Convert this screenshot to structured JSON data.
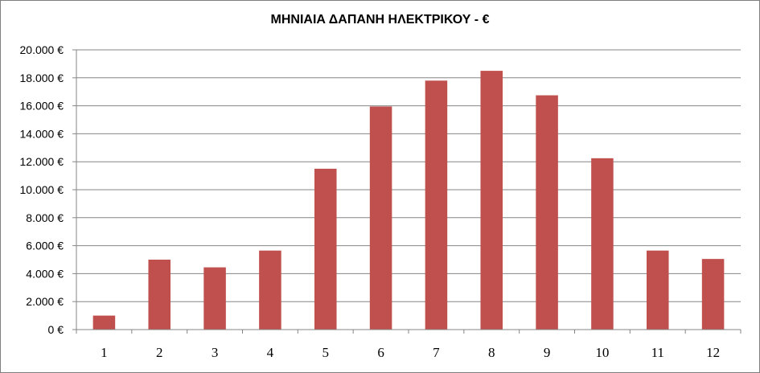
{
  "chart_data": {
    "type": "bar",
    "title": "ΜΗΝΙΑΙΑ ΔΑΠΑΝΗ ΗΛΕΚΤΡΙΚΟΥ - €",
    "categories": [
      "1",
      "2",
      "3",
      "4",
      "5",
      "6",
      "7",
      "8",
      "9",
      "10",
      "11",
      "12"
    ],
    "values": [
      1000,
      5000,
      4450,
      5650,
      11500,
      15950,
      17800,
      18500,
      16750,
      12250,
      5650,
      5050
    ],
    "ylim": [
      0,
      20000
    ],
    "yticks": [
      0,
      2000,
      4000,
      6000,
      8000,
      10000,
      12000,
      14000,
      16000,
      18000,
      20000
    ],
    "ytick_labels": [
      "0 €",
      "2.000 €",
      "4.000 €",
      "6.000 €",
      "8.000 €",
      "10.000 €",
      "12.000 €",
      "14.000 €",
      "16.000 €",
      "18.000 €",
      "20.000 €"
    ],
    "xlabel": "",
    "ylabel": "",
    "grid": true,
    "legend": "none",
    "bar_color": "#c0504d",
    "grid_color": "#868686"
  }
}
